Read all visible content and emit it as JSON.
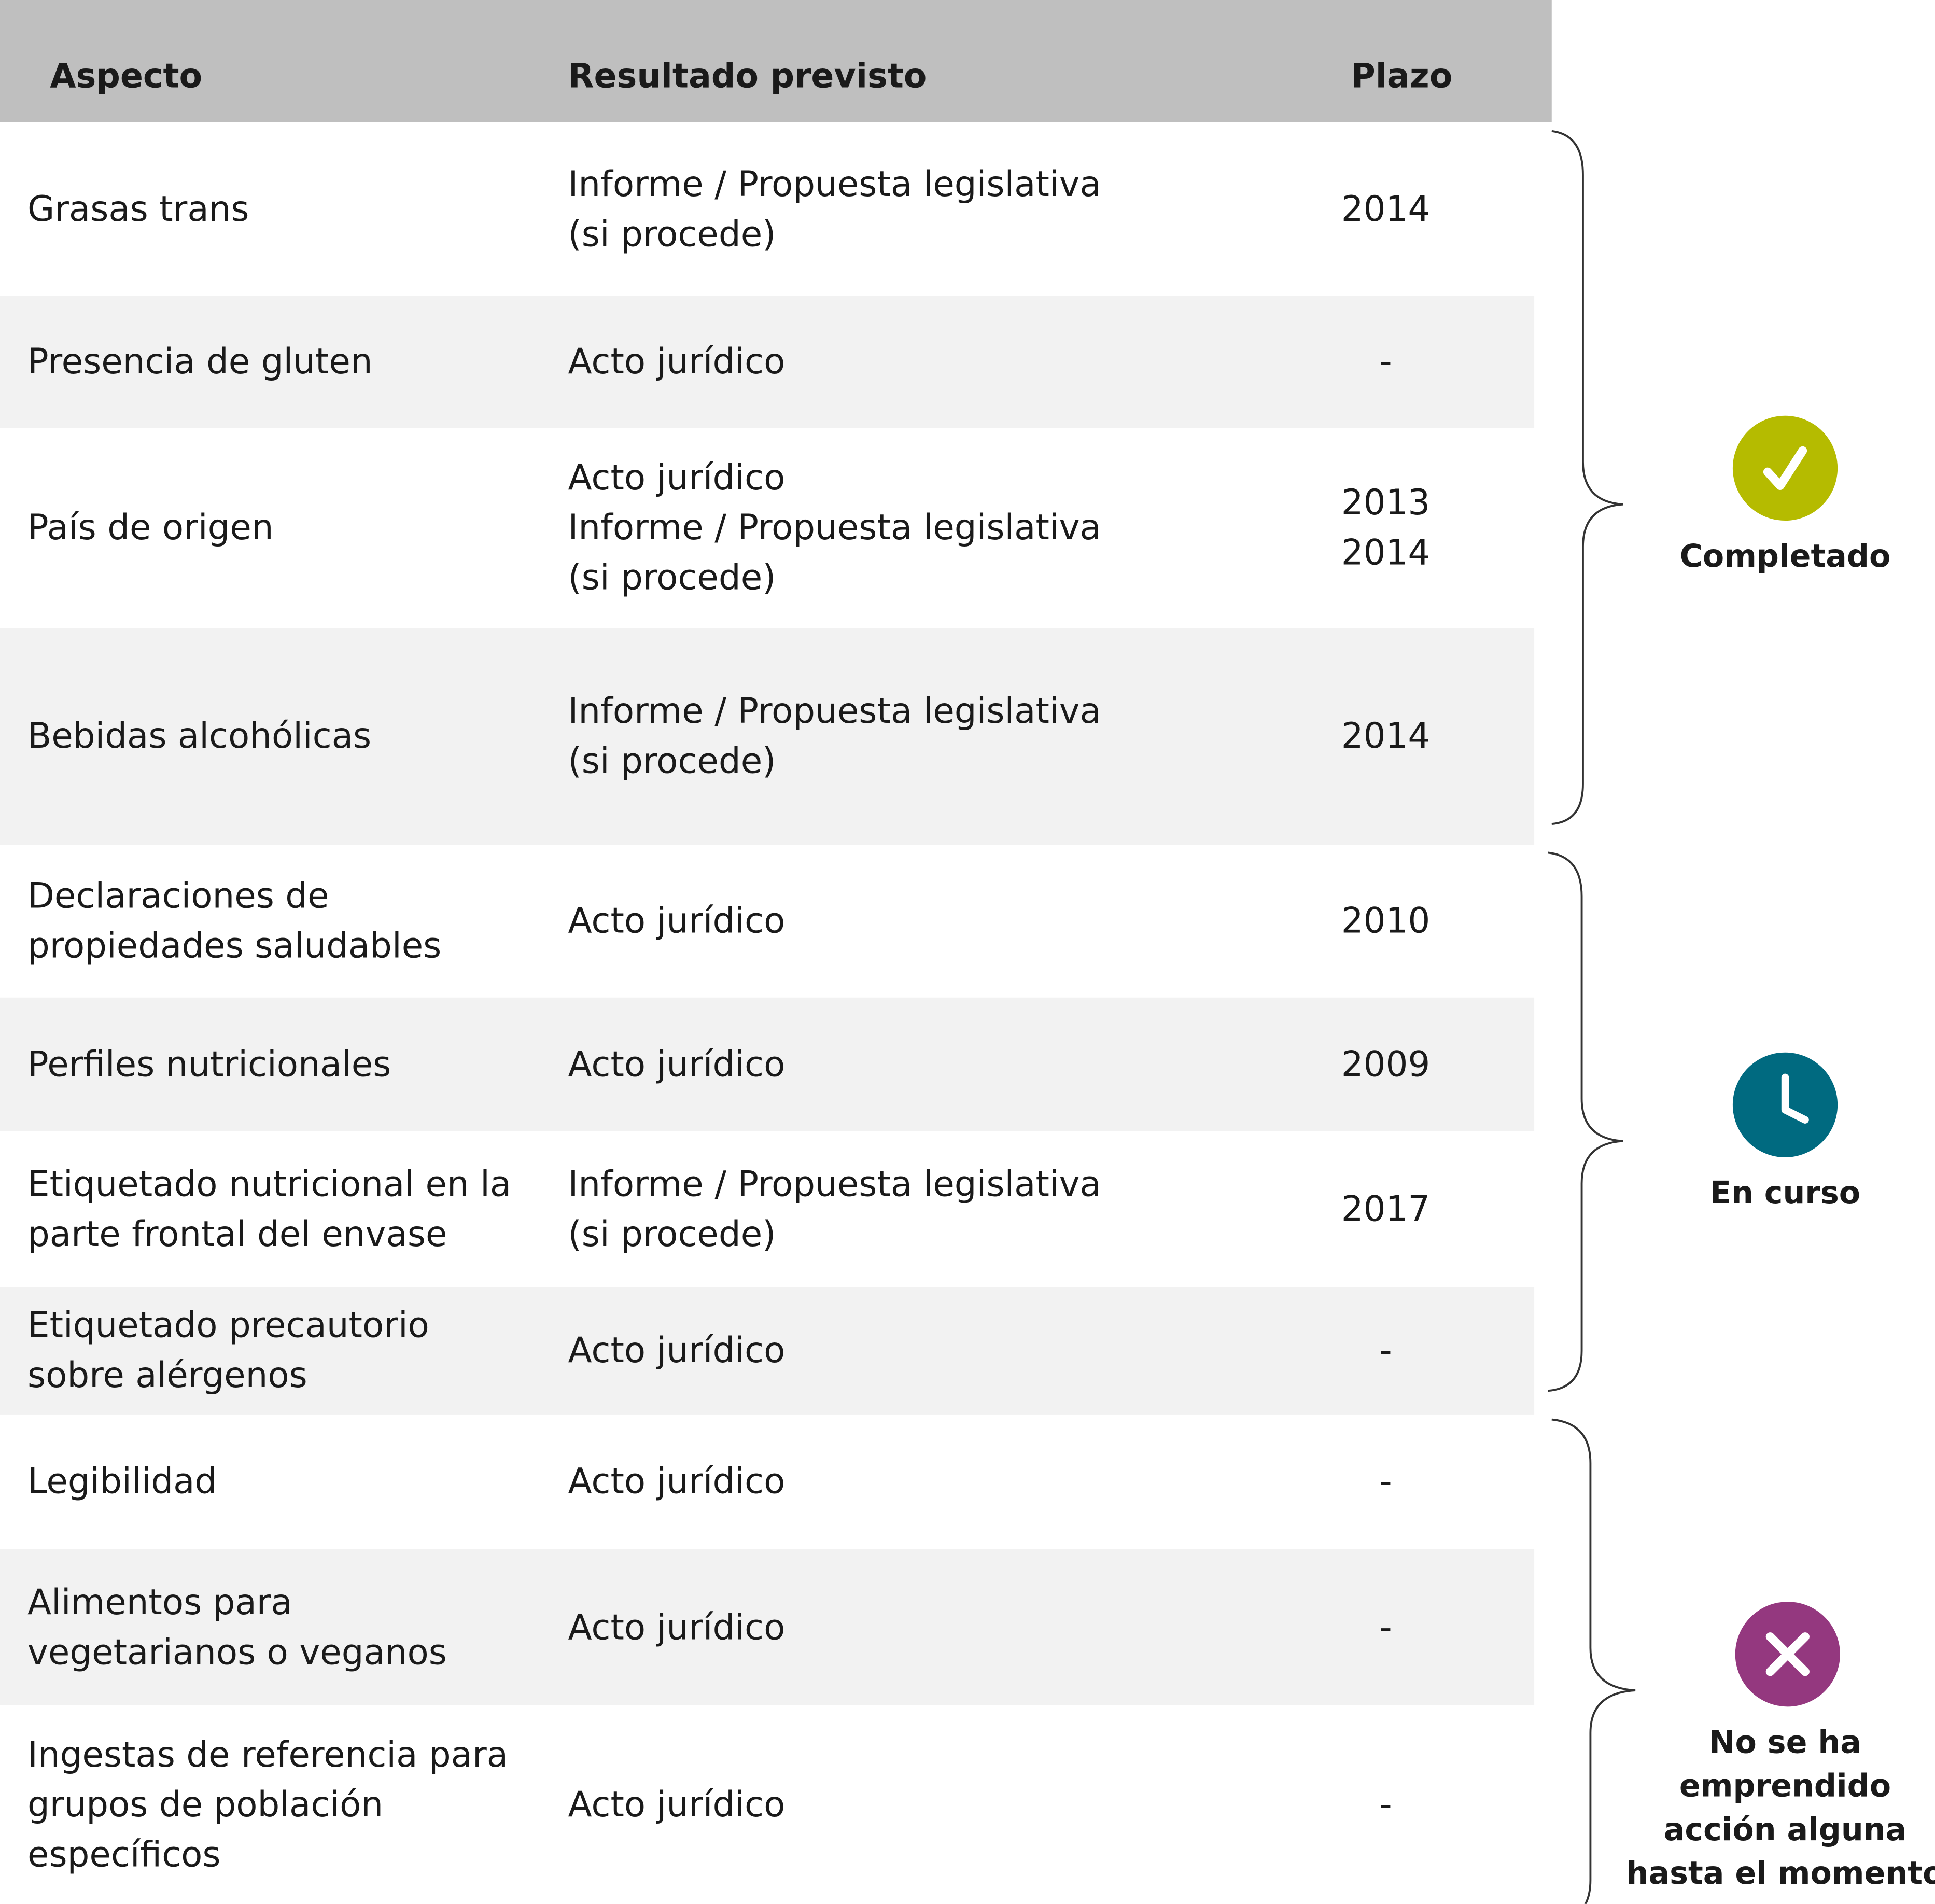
{
  "header": {
    "aspect": "Aspecto",
    "result": "Resultado previsto",
    "deadline": "Plazo"
  },
  "rows": [
    {
      "aspect": "Grasas trans",
      "result": "Informe / Propuesta legislativa\n(si procede)",
      "deadline": "2014"
    },
    {
      "aspect": "Presencia de gluten",
      "result": "Acto jurídico",
      "deadline": "-"
    },
    {
      "aspect": "País de origen",
      "result": "Acto jurídico\nInforme / Propuesta legislativa\n(si procede)",
      "deadline": "2013\n2014"
    },
    {
      "aspect": "Bebidas alcohólicas",
      "result": "Informe / Propuesta legislativa\n(si procede)",
      "deadline": "2014"
    },
    {
      "aspect": "Declaraciones de\npropiedades saludables",
      "result": "Acto jurídico",
      "deadline": "2010"
    },
    {
      "aspect": "Perfiles nutricionales",
      "result": "Acto jurídico",
      "deadline": "2009"
    },
    {
      "aspect": "Etiquetado nutricional en la\nparte frontal del envase",
      "result": "Informe / Propuesta legislativa\n(si procede)",
      "deadline": "2017"
    },
    {
      "aspect": "Etiquetado precautorio\nsobre alérgenos",
      "result": "Acto jurídico",
      "deadline": "-"
    },
    {
      "aspect": "Legibilidad",
      "result": "Acto jurídico",
      "deadline": "-"
    },
    {
      "aspect": "Alimentos para\nvegetarianos o veganos",
      "result": "Acto jurídico",
      "deadline": "-"
    },
    {
      "aspect": "Ingestas de referencia para\ngrupos de población\nespecíficos",
      "result": "Acto jurídico",
      "deadline": "-"
    }
  ],
  "statuses": [
    {
      "label": "Completado",
      "icon": "check-icon",
      "color": "#b5bb00"
    },
    {
      "label": "En curso",
      "icon": "clock-icon",
      "color": "#006a80"
    },
    {
      "label": "No se ha\nemprendido\nacción alguna\nhasta el momento",
      "icon": "x-icon",
      "color": "#94387f"
    }
  ],
  "colors": {
    "header_bg": "#bfbfbf",
    "alt_row_bg": "#f2f2f2"
  }
}
